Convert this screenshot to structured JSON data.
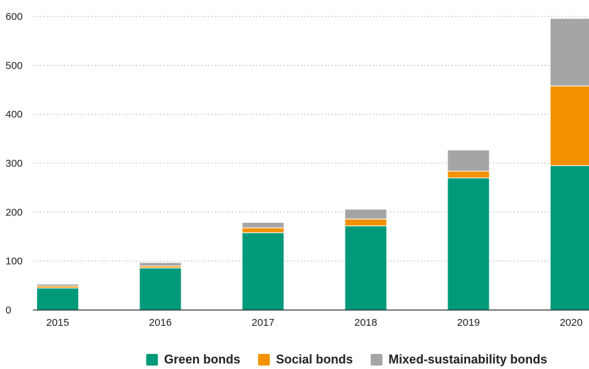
{
  "chart_data": {
    "type": "bar",
    "stacked": true,
    "categories": [
      "2015",
      "2016",
      "2017",
      "2018",
      "2019",
      "2020"
    ],
    "series": [
      {
        "name": "Green bonds",
        "color": "#009a7b",
        "values": [
          45,
          86,
          158,
          172,
          270,
          295
        ]
      },
      {
        "name": "Social bonds",
        "color": "#f29100",
        "values": [
          4,
          4,
          10,
          14,
          14,
          163
        ]
      },
      {
        "name": "Mixed-sustainability bonds",
        "color": "#a5a5a5",
        "values": [
          4,
          7,
          11,
          20,
          43,
          138
        ]
      }
    ],
    "ylim": [
      0,
      600
    ],
    "yticks": [
      0,
      100,
      200,
      300,
      400,
      500,
      600
    ],
    "grid": true,
    "legend_position": "bottom",
    "title": "",
    "xlabel": "",
    "ylabel": ""
  }
}
